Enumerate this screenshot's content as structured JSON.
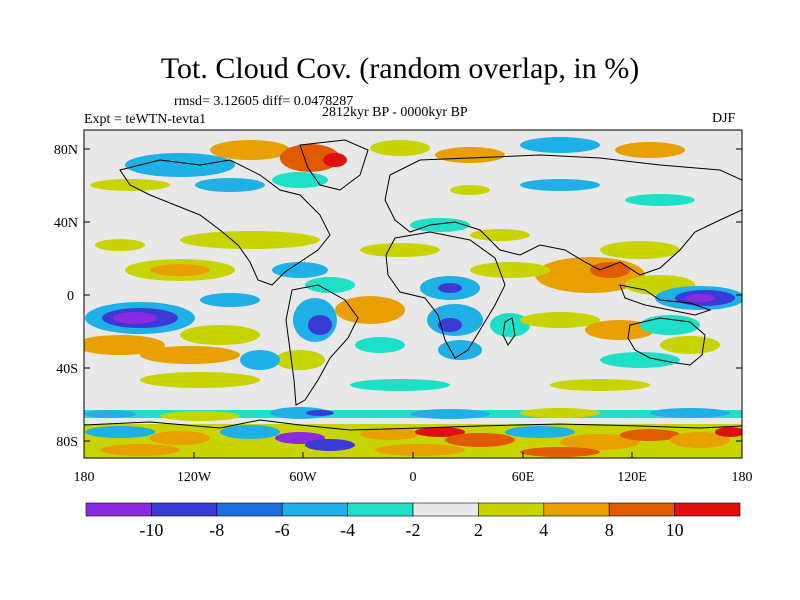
{
  "title": "Tot. Cloud Cov. (random overlap, in %)",
  "stats": "rmsd= 3.12605 diff= 0.0478287",
  "expt": "Expt = teWTN-tevta1",
  "period": "2812kyr BP - 0000kyr BP",
  "season": "DJF",
  "lat_ticks": [
    "80N",
    "40N",
    "0",
    "40S",
    "80S"
  ],
  "lon_ticks": [
    "180",
    "120W",
    "60W",
    "0",
    "60E",
    "120E",
    "180"
  ],
  "colorbar": {
    "labels": [
      "-10",
      "-8",
      "-6",
      "-4",
      "-2",
      "2",
      "4",
      "8",
      "10"
    ],
    "colors": [
      "#8a2be2",
      "#3a3ad6",
      "#1f6fe0",
      "#1fb0e6",
      "#1ee0c8",
      "#e8e8e8",
      "#c8d400",
      "#e8a000",
      "#e05a00",
      "#e01010"
    ]
  }
}
